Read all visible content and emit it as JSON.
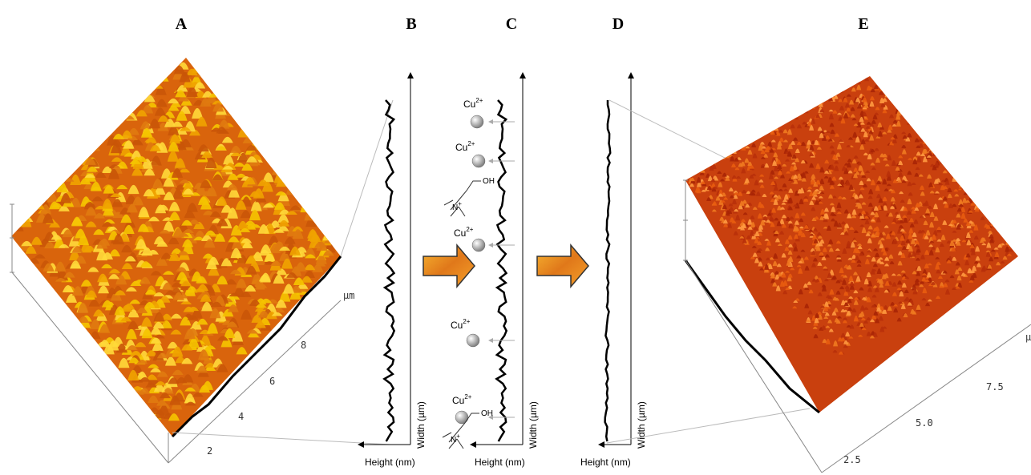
{
  "panels": [
    {
      "label": "A",
      "axis_unit": "µm",
      "ticks": [
        "2",
        "4",
        "6",
        "8"
      ]
    },
    {
      "label": "B",
      "height_axis": "Height (nm)",
      "width_axis": "Width (µm)"
    },
    {
      "label": "C",
      "height_axis": "Height (nm)",
      "width_axis": "Width (µm)",
      "ions": [
        {
          "symbol": "Cu",
          "charge": "2+"
        },
        {
          "symbol": "Cu",
          "charge": "2+"
        },
        {
          "symbol": "Cu",
          "charge": "2+"
        },
        {
          "symbol": "Cu",
          "charge": "2+"
        },
        {
          "symbol": "Cu",
          "charge": "2+"
        }
      ],
      "molecules": [
        {
          "hydroxyl": "OH",
          "nitrogen": "N",
          "charge": "+"
        },
        {
          "hydroxyl": "OH",
          "nitrogen": "N",
          "charge": "+"
        }
      ]
    },
    {
      "label": "D",
      "height_axis": "Height (nm)",
      "width_axis": "Width (µm)"
    },
    {
      "label": "E",
      "axis_unit": "µ",
      "ticks": [
        "2.5",
        "5.0",
        "7.5"
      ]
    }
  ]
}
